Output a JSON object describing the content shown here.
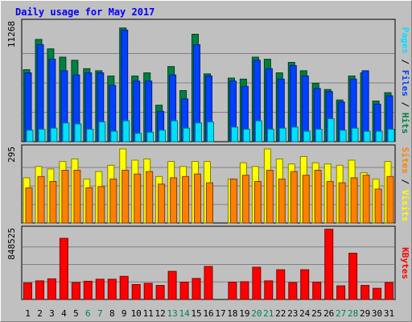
{
  "chart_data": [
    {
      "type": "bar",
      "title": "Daily usage for May 2017",
      "categories": [
        "1",
        "2",
        "3",
        "4",
        "5",
        "6",
        "7",
        "8",
        "9",
        "10",
        "11",
        "12",
        "13",
        "14",
        "15",
        "16",
        "17",
        "18",
        "19",
        "20",
        "21",
        "22",
        "23",
        "24",
        "25",
        "26",
        "27",
        "28",
        "29",
        "30",
        "31"
      ],
      "weekend_days": [
        "6",
        "7",
        "13",
        "14",
        "20",
        "21",
        "27",
        "28"
      ],
      "ymax_label": "11268",
      "ylim": [
        0,
        11268
      ],
      "right_labels": [
        "Pages",
        "Files",
        "Hits"
      ],
      "right_separator": " / ",
      "series": [
        {
          "name": "Hits",
          "color": "#008040",
          "values": [
            6900,
            9800,
            8900,
            8100,
            7800,
            7000,
            6800,
            6300,
            10900,
            6300,
            6600,
            3500,
            7200,
            4900,
            10300,
            6500,
            0,
            6100,
            6000,
            8100,
            7900,
            6600,
            7600,
            6800,
            5600,
            5000,
            4000,
            6300,
            6600,
            3900,
            4700
          ]
        },
        {
          "name": "Files",
          "color": "#0040ff",
          "values": [
            6600,
            9300,
            7900,
            6800,
            6400,
            6600,
            6600,
            5400,
            10700,
            5800,
            5800,
            2900,
            6400,
            4100,
            9300,
            6300,
            0,
            5800,
            5300,
            7800,
            7000,
            6000,
            7300,
            6300,
            5100,
            4800,
            3800,
            6000,
            6800,
            3600,
            4400
          ]
        },
        {
          "name": "Pages",
          "color": "#00e0ff",
          "values": [
            1100,
            1200,
            1300,
            1800,
            1700,
            1200,
            1900,
            1000,
            2000,
            800,
            900,
            1100,
            2000,
            1300,
            1800,
            1900,
            0,
            1400,
            1200,
            2000,
            1200,
            1300,
            1400,
            1000,
            1200,
            2200,
            1100,
            1300,
            1000,
            1000,
            1200
          ]
        }
      ]
    },
    {
      "type": "bar",
      "ymax_label": "295",
      "ylim": [
        0,
        295
      ],
      "right_labels": [
        "Sites",
        "Visits"
      ],
      "right_separator": " / ",
      "categories": [
        "1",
        "2",
        "3",
        "4",
        "5",
        "6",
        "7",
        "8",
        "9",
        "10",
        "11",
        "12",
        "13",
        "14",
        "15",
        "16",
        "17",
        "18",
        "19",
        "20",
        "21",
        "22",
        "23",
        "24",
        "25",
        "26",
        "27",
        "28",
        "29",
        "30",
        "31"
      ],
      "series": [
        {
          "name": "Visits",
          "color": "#ffff00",
          "values": [
            180,
            225,
            215,
            245,
            255,
            175,
            205,
            230,
            295,
            250,
            255,
            185,
            245,
            225,
            245,
            245,
            0,
            175,
            240,
            225,
            295,
            255,
            235,
            265,
            240,
            235,
            230,
            250,
            200,
            175,
            245
          ]
        },
        {
          "name": "Sites",
          "color": "#ff8000",
          "values": [
            140,
            185,
            165,
            210,
            210,
            140,
            145,
            175,
            210,
            195,
            205,
            155,
            180,
            185,
            195,
            160,
            0,
            175,
            190,
            165,
            210,
            175,
            205,
            190,
            210,
            165,
            160,
            180,
            190,
            135,
            185
          ]
        }
      ]
    },
    {
      "type": "bar",
      "ymax_label": "848525",
      "ylim": [
        0,
        848525
      ],
      "right_labels": [
        "KBytes"
      ],
      "right_separator": "",
      "categories": [
        "1",
        "2",
        "3",
        "4",
        "5",
        "6",
        "7",
        "8",
        "9",
        "10",
        "11",
        "12",
        "13",
        "14",
        "15",
        "16",
        "17",
        "18",
        "19",
        "20",
        "21",
        "22",
        "23",
        "24",
        "25",
        "26",
        "27",
        "28",
        "29",
        "30",
        "31"
      ],
      "series": [
        {
          "name": "KBytes",
          "color": "#ff0000",
          "values": [
            200000,
            225000,
            250000,
            740000,
            205000,
            220000,
            245000,
            245000,
            280000,
            180000,
            195000,
            170000,
            340000,
            210000,
            255000,
            400000,
            0,
            210000,
            215000,
            390000,
            225000,
            360000,
            205000,
            360000,
            210000,
            850000,
            165000,
            560000,
            170000,
            135000,
            205000
          ]
        }
      ]
    }
  ]
}
